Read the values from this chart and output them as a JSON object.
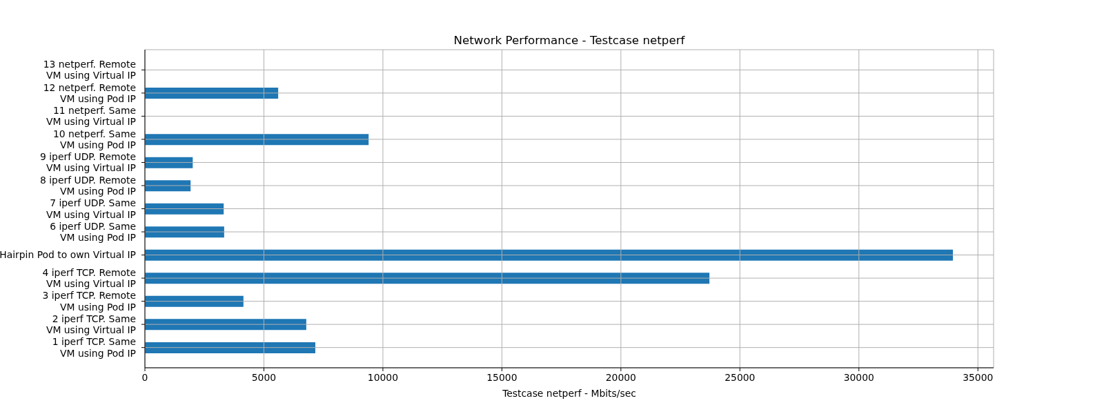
{
  "chart_data": {
    "type": "bar",
    "orientation": "horizontal",
    "title": "Network Performance - Testcase netperf",
    "xlabel": "Testcase netperf - Mbits/sec",
    "categories": [
      "13 netperf. Remote\nVM using Virtual IP",
      "12 netperf. Remote\nVM using Pod IP",
      "11 netperf. Same\nVM using Virtual IP",
      "10 netperf. Same\nVM using Pod IP",
      "9 iperf UDP. Remote\nVM using Virtual IP",
      "8 iperf UDP. Remote\nVM using Pod IP",
      "7 iperf UDP. Same\nVM using Virtual IP",
      "6 iperf UDP. Same\nVM using Pod IP",
      "Hairpin Pod to own Virtual IP",
      "4 iperf TCP. Remote\nVM using Virtual IP",
      "3 iperf TCP. Remote\nVM using Pod IP",
      "2 iperf TCP. Same\nVM using Virtual IP",
      "1 iperf TCP. Same\nVM using Pod IP"
    ],
    "values": [
      null,
      5600,
      null,
      9400,
      2010,
      1920,
      3310,
      3330,
      33950,
      23720,
      4140,
      6780,
      7160
    ],
    "color": "#1f77b4",
    "xlim": [
      0,
      35660
    ],
    "xticks": [
      0,
      5000,
      10000,
      15000,
      20000,
      25000,
      30000,
      35000
    ],
    "grid": true
  }
}
